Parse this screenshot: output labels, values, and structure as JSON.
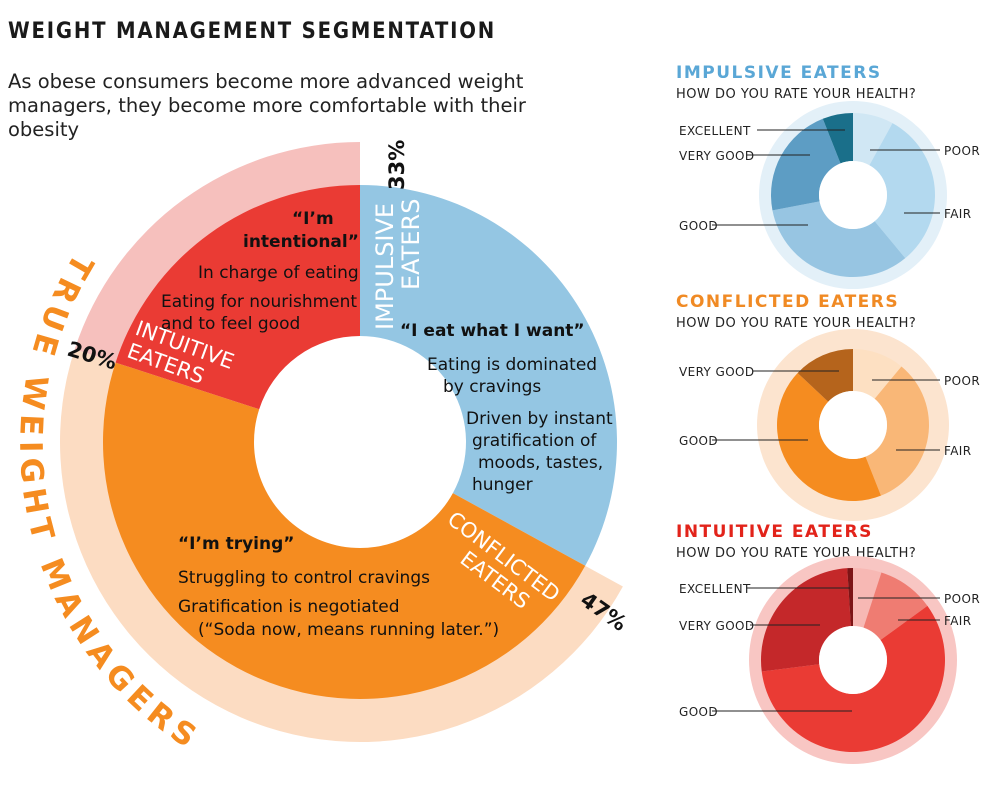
{
  "header": {
    "title": "WEIGHT MANAGEMENT SEGMENTATION",
    "subtitle_lines": [
      "As obese consumers become more advanced weight",
      "managers, they become more comfortable with their",
      "obesity"
    ]
  },
  "colors": {
    "impulsive": "#94c6e3",
    "impulsive_light": "#ffffff",
    "conflicted": "#f58c20",
    "conflicted_light": "#fcdcc2",
    "intuitive": "#ea3b34",
    "intuitive_light": "#f6c0bd",
    "true_wm_text": "#f58c20",
    "intuitive_title": "#e2231a",
    "conflicted_title": "#f08a24",
    "impulsive_title": "#5aa7d6"
  },
  "chart_data": [
    {
      "type": "pie",
      "name": "main_segmentation",
      "categories": [
        "Impulsive Eaters",
        "Conflicted Eaters",
        "Intuitive Eaters"
      ],
      "values": [
        33,
        47,
        20
      ],
      "segment_labels": [
        [
          "IMPULSIVE",
          "EATERS"
        ],
        [
          "CONFLICTED",
          "EATERS"
        ],
        [
          "INTUITIVE",
          "EATERS"
        ]
      ],
      "value_labels": [
        "33%",
        "47%",
        "20%"
      ],
      "outer_ring_label": "TRUE WEIGHT MANAGERS",
      "outer_ring_members": [
        "Conflicted Eaters",
        "Intuitive Eaters"
      ],
      "quotes": {
        "impulsive": {
          "headline": "“I eat what I want”",
          "lines": [
            "Eating is dominated",
            "by cravings",
            "Driven by instant",
            "gratification of",
            "moods, tastes,",
            "hunger"
          ]
        },
        "conflicted": {
          "headline": "“I’m trying”",
          "lines": [
            "Struggling to control cravings",
            "Gratification is negotiated",
            "(“Soda now, means running later.”)"
          ]
        },
        "intuitive": {
          "headline_lines": [
            "“I’m",
            "intentional”"
          ],
          "lines": [
            "In charge of eating",
            "Eating for nourishment",
            "and to feel good"
          ]
        }
      }
    },
    {
      "type": "pie",
      "name": "impulsive_health",
      "title": "IMPULSIVE EATERS",
      "question": "HOW DO YOU RATE YOUR HEALTH?",
      "categories": [
        "Poor",
        "Fair",
        "Good",
        "Very Good",
        "Excellent"
      ],
      "values": [
        8,
        31,
        33,
        22,
        6
      ],
      "labels": [
        "POOR",
        "FAIR",
        "GOOD",
        "VERY GOOD",
        "EXCELLENT"
      ],
      "colors": [
        "#d0e7f4",
        "#b3d9ef",
        "#97c5e2",
        "#5d9dc4",
        "#1a6f8a"
      ],
      "ring_color": "#e3f0f8"
    },
    {
      "type": "pie",
      "name": "conflicted_health",
      "title": "CONFLICTED EATERS",
      "question": "HOW DO YOU RATE YOUR HEALTH?",
      "categories": [
        "Poor",
        "Fair",
        "Good",
        "Very Good"
      ],
      "values": [
        11,
        33,
        43,
        13
      ],
      "labels": [
        "POOR",
        "FAIR",
        "GOOD",
        "VERY GOOD"
      ],
      "colors": [
        "#fde0c2",
        "#f9b777",
        "#f58c20",
        "#b5641c"
      ],
      "ring_color": "#fce4cf"
    },
    {
      "type": "pie",
      "name": "intuitive_health",
      "title": "INTUITIVE EATERS",
      "question": "HOW DO YOU RATE YOUR HEALTH?",
      "categories": [
        "Poor",
        "Fair",
        "Good",
        "Very Good",
        "Excellent"
      ],
      "values": [
        5,
        10,
        58,
        26,
        1
      ],
      "labels": [
        "POOR",
        "FAIR",
        "GOOD",
        "VERY GOOD",
        "EXCELLENT"
      ],
      "colors": [
        "#f7b8b4",
        "#ef7c72",
        "#ea3b34",
        "#c4282a",
        "#7d1416"
      ],
      "ring_color": "#f8c6c3"
    }
  ]
}
